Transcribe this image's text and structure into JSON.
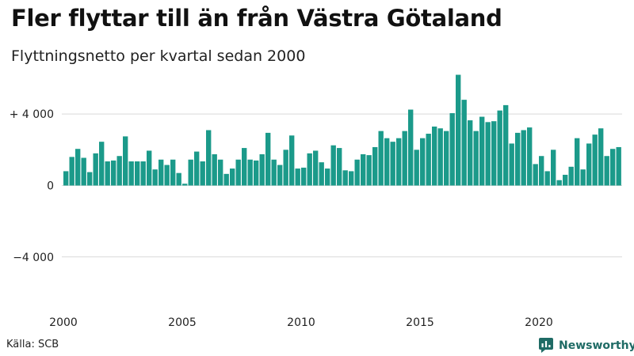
{
  "chart_data": {
    "type": "bar",
    "title": "Fler flyttar till än från Västra Götaland",
    "subtitle": "Flyttningsnetto per kvartal sedan 2000",
    "x_start": "2000-Q1",
    "x_ticks": [
      "2000",
      "2005",
      "2010",
      "2015",
      "2020"
    ],
    "y_ticks": [
      {
        "value": 4000,
        "label": "+ 4 000"
      },
      {
        "value": 0,
        "label": "0"
      },
      {
        "value": -4000,
        "label": "−4 000"
      }
    ],
    "ylim": [
      -6800,
      6400
    ],
    "grid": true,
    "bar_color": "#1b9a8a",
    "values": [
      800,
      1600,
      2050,
      1550,
      750,
      1800,
      2450,
      1350,
      1400,
      1650,
      2750,
      1350,
      1350,
      1350,
      1950,
      900,
      1450,
      1150,
      1450,
      700,
      100,
      1450,
      1900,
      1350,
      3100,
      1750,
      1450,
      650,
      950,
      1450,
      2100,
      1450,
      1400,
      1750,
      2950,
      1450,
      1150,
      2000,
      2800,
      950,
      1000,
      1800,
      1950,
      1300,
      950,
      2250,
      2100,
      850,
      800,
      1450,
      1750,
      1700,
      2150,
      3050,
      2650,
      2450,
      2650,
      3050,
      4250,
      2000,
      2650,
      2900,
      3300,
      3200,
      3050,
      4050,
      6200,
      4800,
      3650,
      3050,
      3850,
      3550,
      3600,
      4200,
      4500,
      2350,
      2950,
      3100,
      3250,
      1200,
      1650,
      800,
      2000,
      300,
      600,
      1050,
      2650,
      900,
      2350,
      2850,
      3200,
      1650,
      2050,
      2150
    ]
  },
  "footer": {
    "source": "Källa: SCB",
    "brand": "Newsworthy"
  },
  "colors": {
    "grid": "#d9d9d9",
    "brand": "#1f6b65"
  }
}
